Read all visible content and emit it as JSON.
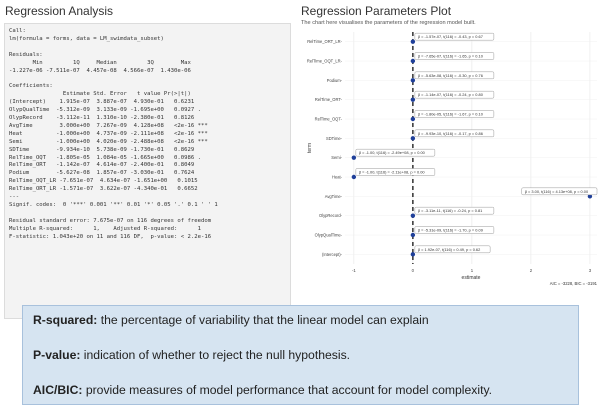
{
  "left_panel": {
    "title": "Regression Analysis",
    "console_text": "Call:\nlm(formula = forms, data = LM_swimdata_subset)\n\nResiduals:\n       Min         1Q     Median         3Q        Max\n-1.227e-06 -7.511e-07  4.457e-08  4.566e-07  1.430e-06\n\nCoefficients:\n                Estimate Std. Error   t value Pr(>|t|)\n(Intercept)    1.915e-07  3.887e-07  4.930e-01   0.6231\nOlypQualTime  -5.312e-09  3.133e-09 -1.695e+00   0.0927 .\nOlypRecord    -3.112e-11  1.310e-10 -2.380e-01   0.8126\nAvgTime        3.000e+00  7.267e-09  4.128e+08   <2e-16 ***\nHeat          -1.000e+00  4.737e-09 -2.111e+08   <2e-16 ***\nSemi          -1.000e+00  4.020e-09 -2.488e+08   <2e-16 ***\nSDTime        -9.934e-10  5.738e-09 -1.730e-01   0.8629\nRelTime_OQT   -1.805e-05  1.084e-05 -1.665e+00   0.0986 .\nRelTime_ORT   -1.142e-07  4.614e-07 -2.400e-01   0.8049\nPodium        -5.627e-08  1.857e-07 -3.030e-01   0.7624\nRelTime_OQT_LR -7.651e-07  4.634e-07 -1.651e+00   0.1015\nRelTime_ORT_LR -1.571e-07  3.622e-07 -4.340e-01   0.6652\n---\nSignif. codes:  0 '***' 0.001 '**' 0.01 '*' 0.05 '.' 0.1 ' ' 1\n\nResidual standard error: 7.675e-07 on 116 degrees of freedom\nMultiple R-squared:      1,    Adjusted R-squared:      1\nF-statistic: 1.043e+20 on 11 and 116 DF,  p-value: < 2.2e-16"
  },
  "right_panel": {
    "title": "Regression Parameters Plot",
    "subtitle": "The chart here visualises the parameters of the regression model built."
  },
  "chart_data": {
    "type": "scatter",
    "xlabel": "estimate",
    "ylabel": "term",
    "annotation": "AIC = -3228, BIC = -3191",
    "x_tick_labels": [
      "-1",
      "0",
      "1",
      "2",
      "3"
    ],
    "xlim": [
      -1.15,
      3.12
    ],
    "terms": [
      "RelTime_ORT_LR",
      "RelTime_OQT_LR",
      "Podium",
      "RelTime_ORT",
      "RelTime_OQT",
      "SDTime",
      "Semi",
      "Heat",
      "AvgTime",
      "OlypRecord",
      "OlypQualTime",
      "(Intercept)"
    ],
    "term_labels": [
      "RelTime_ORT_LR-",
      "RelTime_OQT_LR-",
      "Podium-",
      "RelTime_ORT-",
      "RelTime_OQT-",
      "SDTime-",
      "Semi-",
      "Heat-",
      "AvgTime-",
      "OlypRecord-",
      "OlypQualTime-",
      "(Intercept)-"
    ],
    "estimates": [
      0,
      0,
      0,
      0,
      0,
      0,
      -1,
      -1,
      3,
      0,
      0,
      0
    ],
    "labels": [
      "β = -1.57e-07, t(116) = -0.43, p = 0.67",
      "β = -7.65e-07, t(116) = -1.65, p = 0.10",
      "β = -5.63e-08, t(116) = -0.30, p = 0.76",
      "β = -1.14e-07, t(116) = -0.24, p = 0.80",
      "β = -1.80e-05, t(116) = -1.67, p = 0.10",
      "β = -9.93e-10, t(116) = -0.17, p = 0.86",
      "β = -1.00, t(116) = -2.49e+08, p = 0.00",
      "β = -1.00, t(116) = -2.11e+08, p = 0.00",
      "β = 3.00, t(116) = 4.13e+08, p = 0.00",
      "β = -3.11e-11, t(116) = -0.24, p = 0.81",
      "β = -5.31e-09, t(116) = -1.70, p = 0.09",
      "β = 1.92e-07, t(116) = 0.49, p = 0.62"
    ],
    "colors": {
      "point": "#1f3f99",
      "zero_line": "#222222",
      "grid": "#e6e6e6"
    }
  },
  "info_box": {
    "lines": [
      {
        "term": "R-squared:",
        "text": " the percentage of variability that the linear model can explain"
      },
      {
        "term": "P-value:",
        "text": " indication of whether to reject the null hypothesis."
      },
      {
        "term": "AIC/BIC:",
        "text": " provide measures of model performance that account for model complexity."
      }
    ]
  }
}
